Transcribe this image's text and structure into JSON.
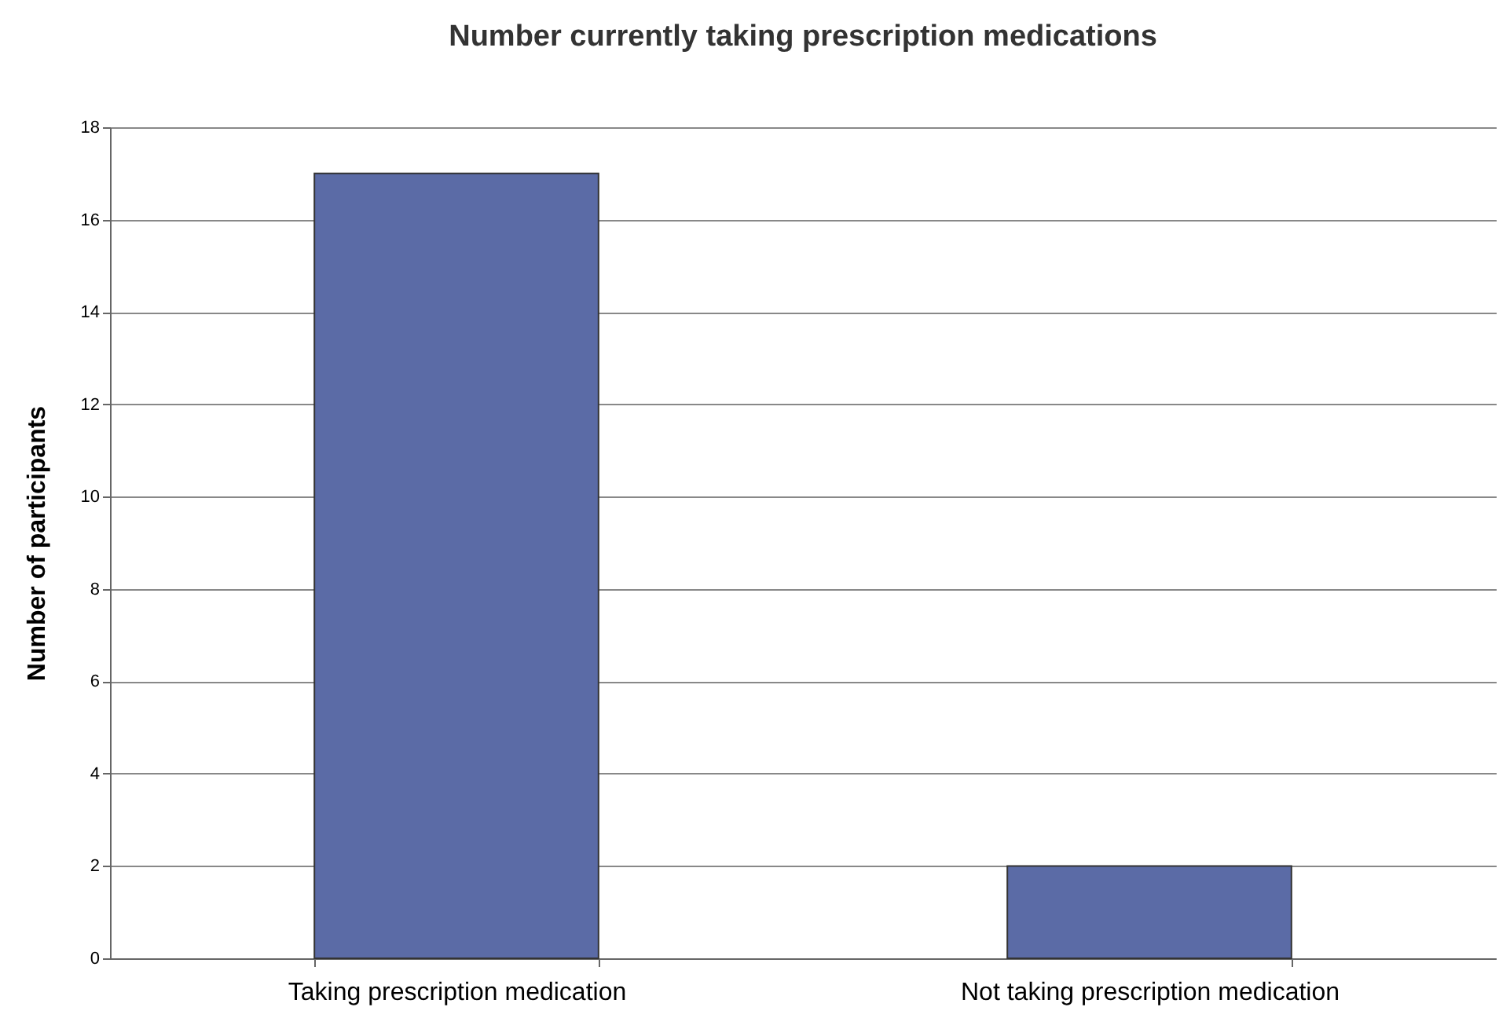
{
  "chart_data": {
    "type": "bar",
    "title": "Number currently taking prescription medications",
    "ylabel": "Number of participants",
    "categories": [
      "Taking prescription medication",
      "Not taking prescription medication"
    ],
    "values": [
      17,
      2
    ],
    "color": "#5b6ba6",
    "ylim": [
      0,
      18
    ],
    "yticks": [
      0,
      2,
      4,
      6,
      8,
      10,
      12,
      14,
      16,
      18
    ],
    "grid": "y"
  }
}
